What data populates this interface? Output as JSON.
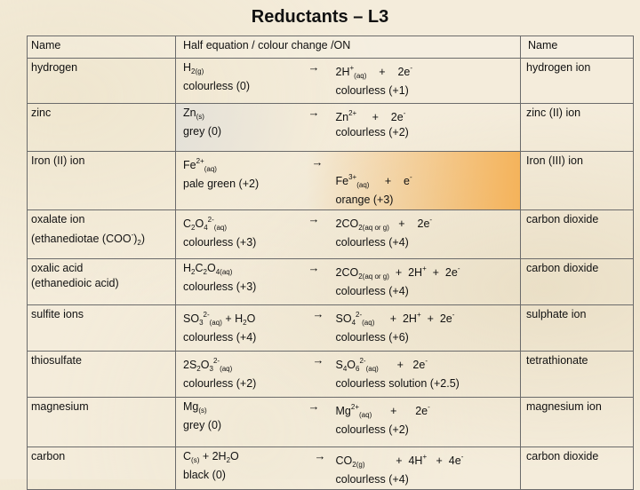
{
  "title": "Reductants – L3",
  "headers": {
    "name": "Name",
    "half": "Half equation  /  colour change  /ON",
    "name2": "Name"
  },
  "rows": [
    {
      "name": "hydrogen",
      "lhs_formula": "H2(g)",
      "lhs_colour": "colourless  (0)",
      "arrow": "→",
      "rhs_formula": "2H+(aq)    +    2e-",
      "rhs_colour": "colourless  (+1)",
      "product": "hydrogen ion"
    },
    {
      "name": "zinc",
      "lhs_formula": "Zn(s)",
      "lhs_colour": "grey  (0)",
      "arrow": "→",
      "rhs_formula": "Zn2+     +    2e-",
      "rhs_colour": "colourless  (+2)",
      "product": "zinc (II) ion"
    },
    {
      "name": "Iron (II) ion",
      "lhs_formula": "Fe2+(aq)",
      "lhs_colour": "pale green  (+2)",
      "arrow": "→",
      "rhs_formula": "Fe3+(aq)     +    e-",
      "rhs_colour": "orange (+3)",
      "product": "Iron (III) ion"
    },
    {
      "name": "oxalate ion",
      "name2": "(ethanediotae (COO-)2)",
      "lhs_formula": "C2O42-(aq)",
      "lhs_colour": "colourless  (+3)",
      "arrow": "→",
      "rhs_formula": "2CO2(aq or g)   +    2e-",
      "rhs_colour": "colourless  (+4)",
      "product": "carbon dioxide"
    },
    {
      "name": "oxalic acid",
      "name2": "(ethanedioic acid)",
      "lhs_formula": "H2C2O4(aq)",
      "lhs_colour": "colourless  (+3)",
      "arrow": "→",
      "rhs_formula": "2CO2(aq or g)  +  2H+  +  2e-",
      "rhs_colour": "colourless  (+4)",
      "product": "carbon dioxide"
    },
    {
      "name": "sulfite ions",
      "lhs_formula": "SO32-(aq) + H2O",
      "lhs_colour": "colourless  (+4)",
      "arrow": "→",
      "rhs_formula": "SO42-(aq)     +  2H+  +  2e-",
      "rhs_colour": "colourless  (+6)",
      "product": "sulphate ion"
    },
    {
      "name": "thiosulfate",
      "lhs_formula": "2S2O32-(aq)",
      "lhs_colour": "colourless  (+2)",
      "arrow": "→",
      "rhs_formula": "S4O62-(aq)      +   2e-",
      "rhs_colour": "colourless solution (+2.5)",
      "product": "tetrathionate"
    },
    {
      "name": "magnesium",
      "lhs_formula": "Mg(s)",
      "lhs_colour": "grey  (0)",
      "arrow": "→",
      "rhs_formula": "Mg2+(aq)      +      2e-",
      "rhs_colour": "colourless  (+2)",
      "product": "magnesium ion"
    },
    {
      "name": "carbon",
      "lhs_formula": "C(s) + 2H2O",
      "lhs_colour": "black  (0)",
      "arrow": "→",
      "rhs_formula": "CO2(g)          +  4H+   +  4e-",
      "rhs_colour": "colourless (+4)",
      "product": "carbon dioxide"
    }
  ]
}
